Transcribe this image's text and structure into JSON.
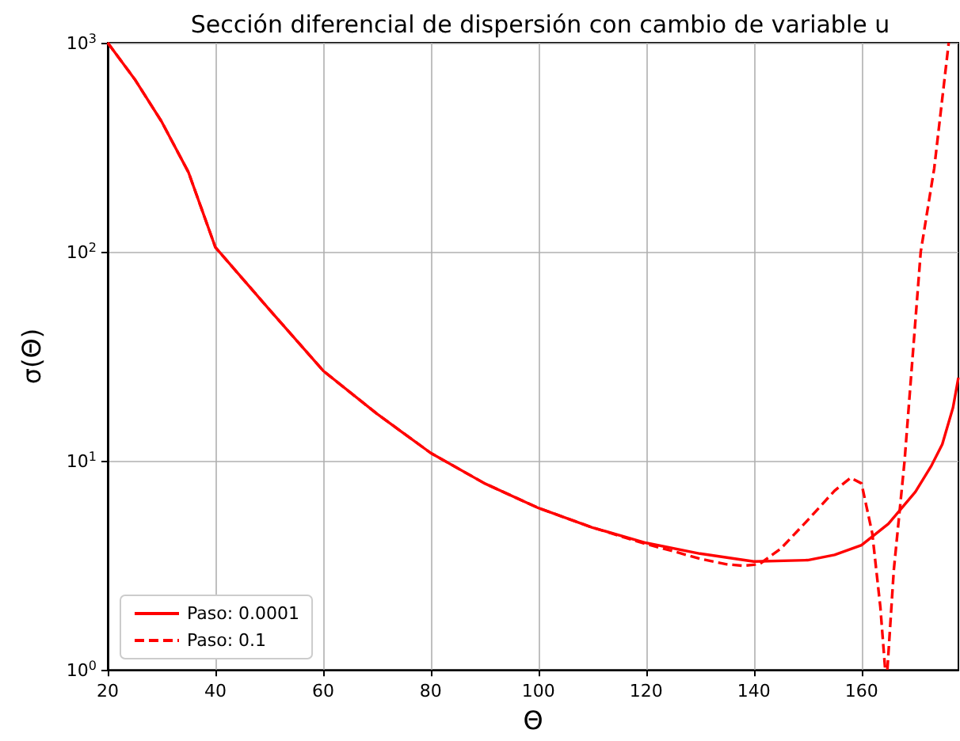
{
  "chart_data": {
    "type": "line",
    "title": "Sección diferencial de dispersión con cambio de variable u",
    "xlabel": "Θ",
    "ylabel": "σ(Θ)",
    "log": "y",
    "grid": true,
    "legend": "bottom left",
    "marker": "none",
    "xlim": [
      20,
      178
    ],
    "xticks": [
      20,
      40,
      60,
      80,
      100,
      120,
      140,
      160
    ],
    "ylim": [
      1,
      1000
    ],
    "yticks": [
      {
        "value": 1,
        "label": "10$^{0}$"
      },
      {
        "value": 10,
        "label": "10$^{1}$"
      },
      {
        "value": 100,
        "label": "10$^{2}$"
      },
      {
        "value": 1000,
        "label": "10$^{3}$"
      }
    ],
    "series": [
      {
        "name": "Paso: 0.0001",
        "color": "#ff0000",
        "line_style": "solid",
        "x": [
          20,
          25,
          30,
          35,
          40,
          50,
          60,
          70,
          80,
          90,
          100,
          110,
          120,
          130,
          140,
          150,
          155,
          160,
          165,
          170,
          173,
          175,
          177,
          178
        ],
        "values": [
          1000,
          670,
          420,
          240,
          105,
          53,
          27,
          16.8,
          10.9,
          7.8,
          5.95,
          4.8,
          4.05,
          3.6,
          3.3,
          3.35,
          3.55,
          3.95,
          5.0,
          7.1,
          9.5,
          12,
          18,
          25
        ]
      },
      {
        "name": "Paso: 0.1",
        "color": "#ff0000",
        "line_style": "dashed",
        "x": [
          20,
          25,
          30,
          35,
          40,
          50,
          60,
          70,
          80,
          90,
          100,
          110,
          120,
          125,
          130,
          135,
          138,
          141,
          145,
          150,
          155,
          158,
          160,
          162,
          163.5,
          164.4,
          164.8,
          166,
          168,
          171,
          173.5,
          176.2
        ],
        "values": [
          1000,
          670,
          420,
          240,
          105,
          53,
          27,
          16.8,
          10.9,
          7.8,
          5.95,
          4.8,
          4.0,
          3.7,
          3.4,
          3.2,
          3.15,
          3.2,
          3.8,
          5.2,
          7.2,
          8.3,
          7.8,
          4.5,
          2.0,
          1.0,
          1.0,
          3,
          10,
          100,
          250,
          1000
        ]
      }
    ]
  }
}
